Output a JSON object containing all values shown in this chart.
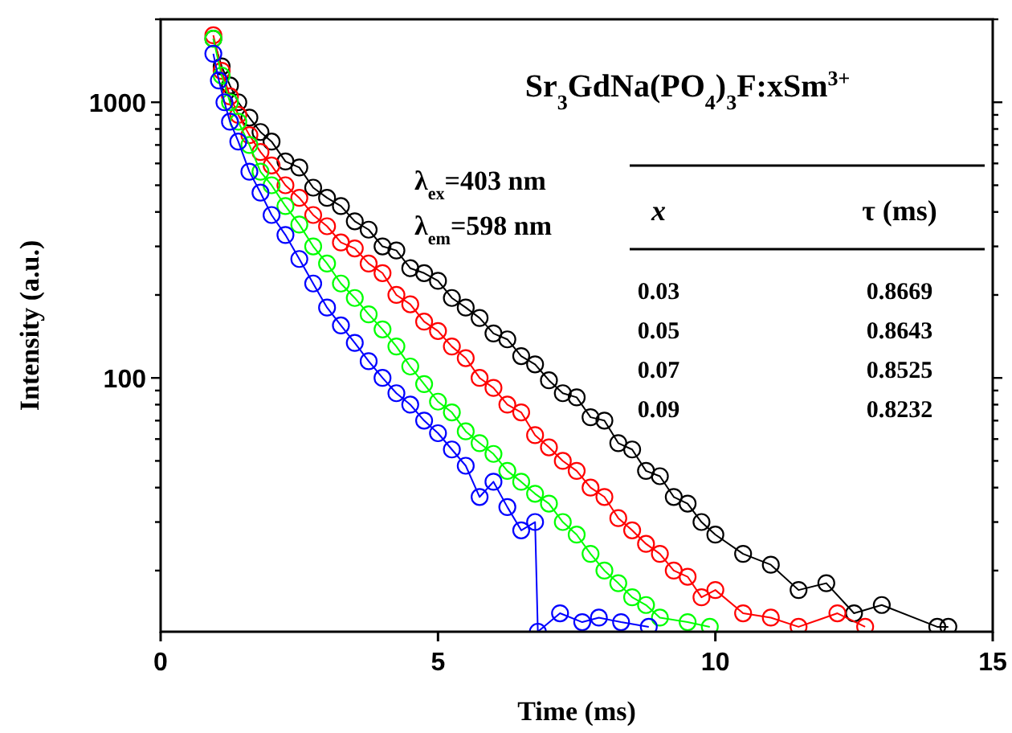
{
  "chart_data": {
    "type": "line",
    "title": "Sr$_{3}$GdNa(PO$_{4}$)$_{3}$F:xSm$^{3+}$",
    "xlabel": "Time (ms)",
    "ylabel": "Intensity (a.u.)",
    "log": "y",
    "grid": false,
    "marker": "circle",
    "line_style": "solid",
    "xlim": [
      0,
      15
    ],
    "xticks": [
      0,
      5,
      10,
      15
    ],
    "ylim": [
      12,
      2000
    ],
    "yticks": [
      {
        "value": 20,
        "label": null
      },
      {
        "value": 30,
        "label": null
      },
      {
        "value": 40,
        "label": null
      },
      {
        "value": 50,
        "label": null
      },
      {
        "value": 60,
        "label": null
      },
      {
        "value": 70,
        "label": null
      },
      {
        "value": 80,
        "label": null
      },
      {
        "value": 90,
        "label": null
      },
      100,
      {
        "value": 200,
        "label": null
      },
      {
        "value": 300,
        "label": null
      },
      {
        "value": 400,
        "label": null
      },
      {
        "value": 500,
        "label": null
      },
      {
        "value": 600,
        "label": null
      },
      {
        "value": 700,
        "label": null
      },
      {
        "value": 800,
        "label": null
      },
      {
        "value": 900,
        "label": null
      },
      1000,
      {
        "value": 2000,
        "label": null
      }
    ],
    "annotations": [
      "λ$_{ex}$=403 nm",
      "λ$_{em}$=598 nm",
      "x",
      "τ (ms)",
      "0.03",
      "0.8669",
      "0.05",
      "0.8643",
      "0.07",
      "0.8525",
      "0.09",
      "0.8232"
    ],
    "series": [
      {
        "color": "#000000",
        "x": [
          0.95,
          1.1,
          1.25,
          1.4,
          1.6,
          1.8,
          2,
          2.25,
          2.5,
          2.75,
          3,
          3.25,
          3.5,
          3.75,
          4,
          4.25,
          4.5,
          4.75,
          5,
          5.25,
          5.5,
          5.75,
          6,
          6.25,
          6.5,
          6.75,
          7,
          7.25,
          7.5,
          7.75,
          8,
          8.25,
          8.5,
          8.75,
          9,
          9.25,
          9.5,
          9.75,
          10,
          10.5,
          11,
          11.5,
          12,
          12.5,
          13,
          14,
          14.2
        ],
        "values": [
          1700,
          1350,
          1150,
          1000,
          880,
          780,
          720,
          610,
          580,
          490,
          450,
          420,
          370,
          345,
          300,
          290,
          250,
          240,
          225,
          195,
          180,
          165,
          145,
          138,
          120,
          112,
          98,
          88,
          85,
          72,
          70,
          58,
          55,
          46,
          44,
          37,
          35,
          30,
          27,
          23,
          21,
          17,
          18,
          14,
          15,
          12.5,
          12.5
        ]
      },
      {
        "color": "#ff0000",
        "x": [
          0.95,
          1.1,
          1.25,
          1.4,
          1.6,
          1.8,
          2,
          2.25,
          2.5,
          2.75,
          3,
          3.25,
          3.5,
          3.75,
          4,
          4.25,
          4.5,
          4.75,
          5,
          5.25,
          5.5,
          5.75,
          6,
          6.25,
          6.5,
          6.75,
          7,
          7.25,
          7.5,
          7.75,
          8,
          8.25,
          8.5,
          8.75,
          9,
          9.25,
          9.5,
          9.75,
          10,
          10.5,
          11,
          11.5,
          12.2,
          12.7
        ],
        "values": [
          1750,
          1300,
          1050,
          900,
          760,
          660,
          590,
          500,
          450,
          390,
          355,
          310,
          295,
          260,
          240,
          200,
          185,
          160,
          148,
          130,
          118,
          100,
          92,
          80,
          75,
          62,
          56,
          50,
          46,
          40,
          37,
          31,
          28,
          25,
          23,
          20,
          19,
          16,
          17,
          14,
          13.5,
          12.5,
          14,
          12.5
        ]
      },
      {
        "color": "#00ff00",
        "x": [
          0.95,
          1.1,
          1.25,
          1.4,
          1.6,
          1.8,
          2,
          2.25,
          2.5,
          2.75,
          3,
          3.25,
          3.5,
          3.75,
          4,
          4.25,
          4.5,
          4.75,
          5,
          5.25,
          5.5,
          5.75,
          6,
          6.25,
          6.5,
          6.75,
          7,
          7.25,
          7.5,
          7.75,
          8,
          8.25,
          8.5,
          8.75,
          9,
          9.5,
          9.9
        ],
        "values": [
          1700,
          1250,
          1000,
          850,
          700,
          560,
          500,
          420,
          360,
          300,
          260,
          220,
          195,
          170,
          150,
          130,
          110,
          95,
          82,
          75,
          64,
          58,
          53,
          46,
          42,
          38,
          35,
          30,
          27,
          23,
          20,
          18,
          16,
          15,
          13.5,
          13,
          12.5
        ]
      },
      {
        "color": "#0000ff",
        "x": [
          0.95,
          1.05,
          1.15,
          1.25,
          1.4,
          1.6,
          1.8,
          2,
          2.25,
          2.5,
          2.75,
          3,
          3.25,
          3.5,
          3.75,
          4,
          4.25,
          4.5,
          4.75,
          5,
          5.25,
          5.5,
          5.75,
          6,
          6.25,
          6.5,
          6.75,
          6.8,
          7.2,
          7.6,
          7.9,
          8.3,
          8.8
        ],
        "values": [
          1500,
          1200,
          1000,
          850,
          720,
          560,
          470,
          390,
          330,
          270,
          220,
          180,
          155,
          134,
          115,
          100,
          88,
          80,
          70,
          63,
          55,
          48,
          37,
          42,
          34,
          28,
          30,
          12,
          14,
          13,
          13.5,
          13,
          12.5
        ]
      }
    ]
  }
}
